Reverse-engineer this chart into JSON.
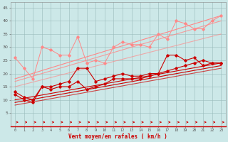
{
  "x": [
    0,
    1,
    2,
    3,
    4,
    5,
    6,
    7,
    8,
    9,
    10,
    11,
    12,
    13,
    14,
    15,
    16,
    17,
    18,
    19,
    20,
    21,
    22,
    23
  ],
  "light_line": [
    26,
    22,
    18,
    30,
    29,
    27,
    27,
    34,
    24,
    25,
    24,
    30,
    32,
    31,
    31,
    30,
    35,
    33,
    40,
    39,
    37,
    37,
    40,
    42
  ],
  "light_trend1": [
    18,
    42
  ],
  "light_trend2": [
    17,
    40
  ],
  "light_trend3": [
    15,
    35
  ],
  "dark_line1": [
    13,
    11,
    10,
    15,
    15,
    16,
    17,
    22,
    22,
    17,
    18,
    19,
    20,
    19,
    19,
    20,
    20,
    27,
    27,
    25,
    26,
    23,
    24,
    24
  ],
  "dark_line2": [
    12,
    10,
    9,
    15,
    14,
    15,
    15,
    17,
    14,
    15,
    16,
    18,
    18,
    18,
    18,
    19,
    20,
    21,
    22,
    23,
    24,
    25,
    24,
    24
  ],
  "dark_trend1": [
    10,
    24
  ],
  "dark_trend2": [
    9,
    23
  ],
  "dark_trend3": [
    8,
    22
  ],
  "bg_color": "#cce8e8",
  "grid_color": "#99bbbb",
  "light_red": "#ff8888",
  "mid_red": "#ff6666",
  "dark_red": "#cc0000",
  "xlabel": "Vent moyen/en rafales ( km/h )",
  "yticks": [
    5,
    10,
    15,
    20,
    25,
    30,
    35,
    40,
    45
  ],
  "xlim": [
    -0.5,
    23.5
  ],
  "ylim": [
    0,
    47
  ]
}
